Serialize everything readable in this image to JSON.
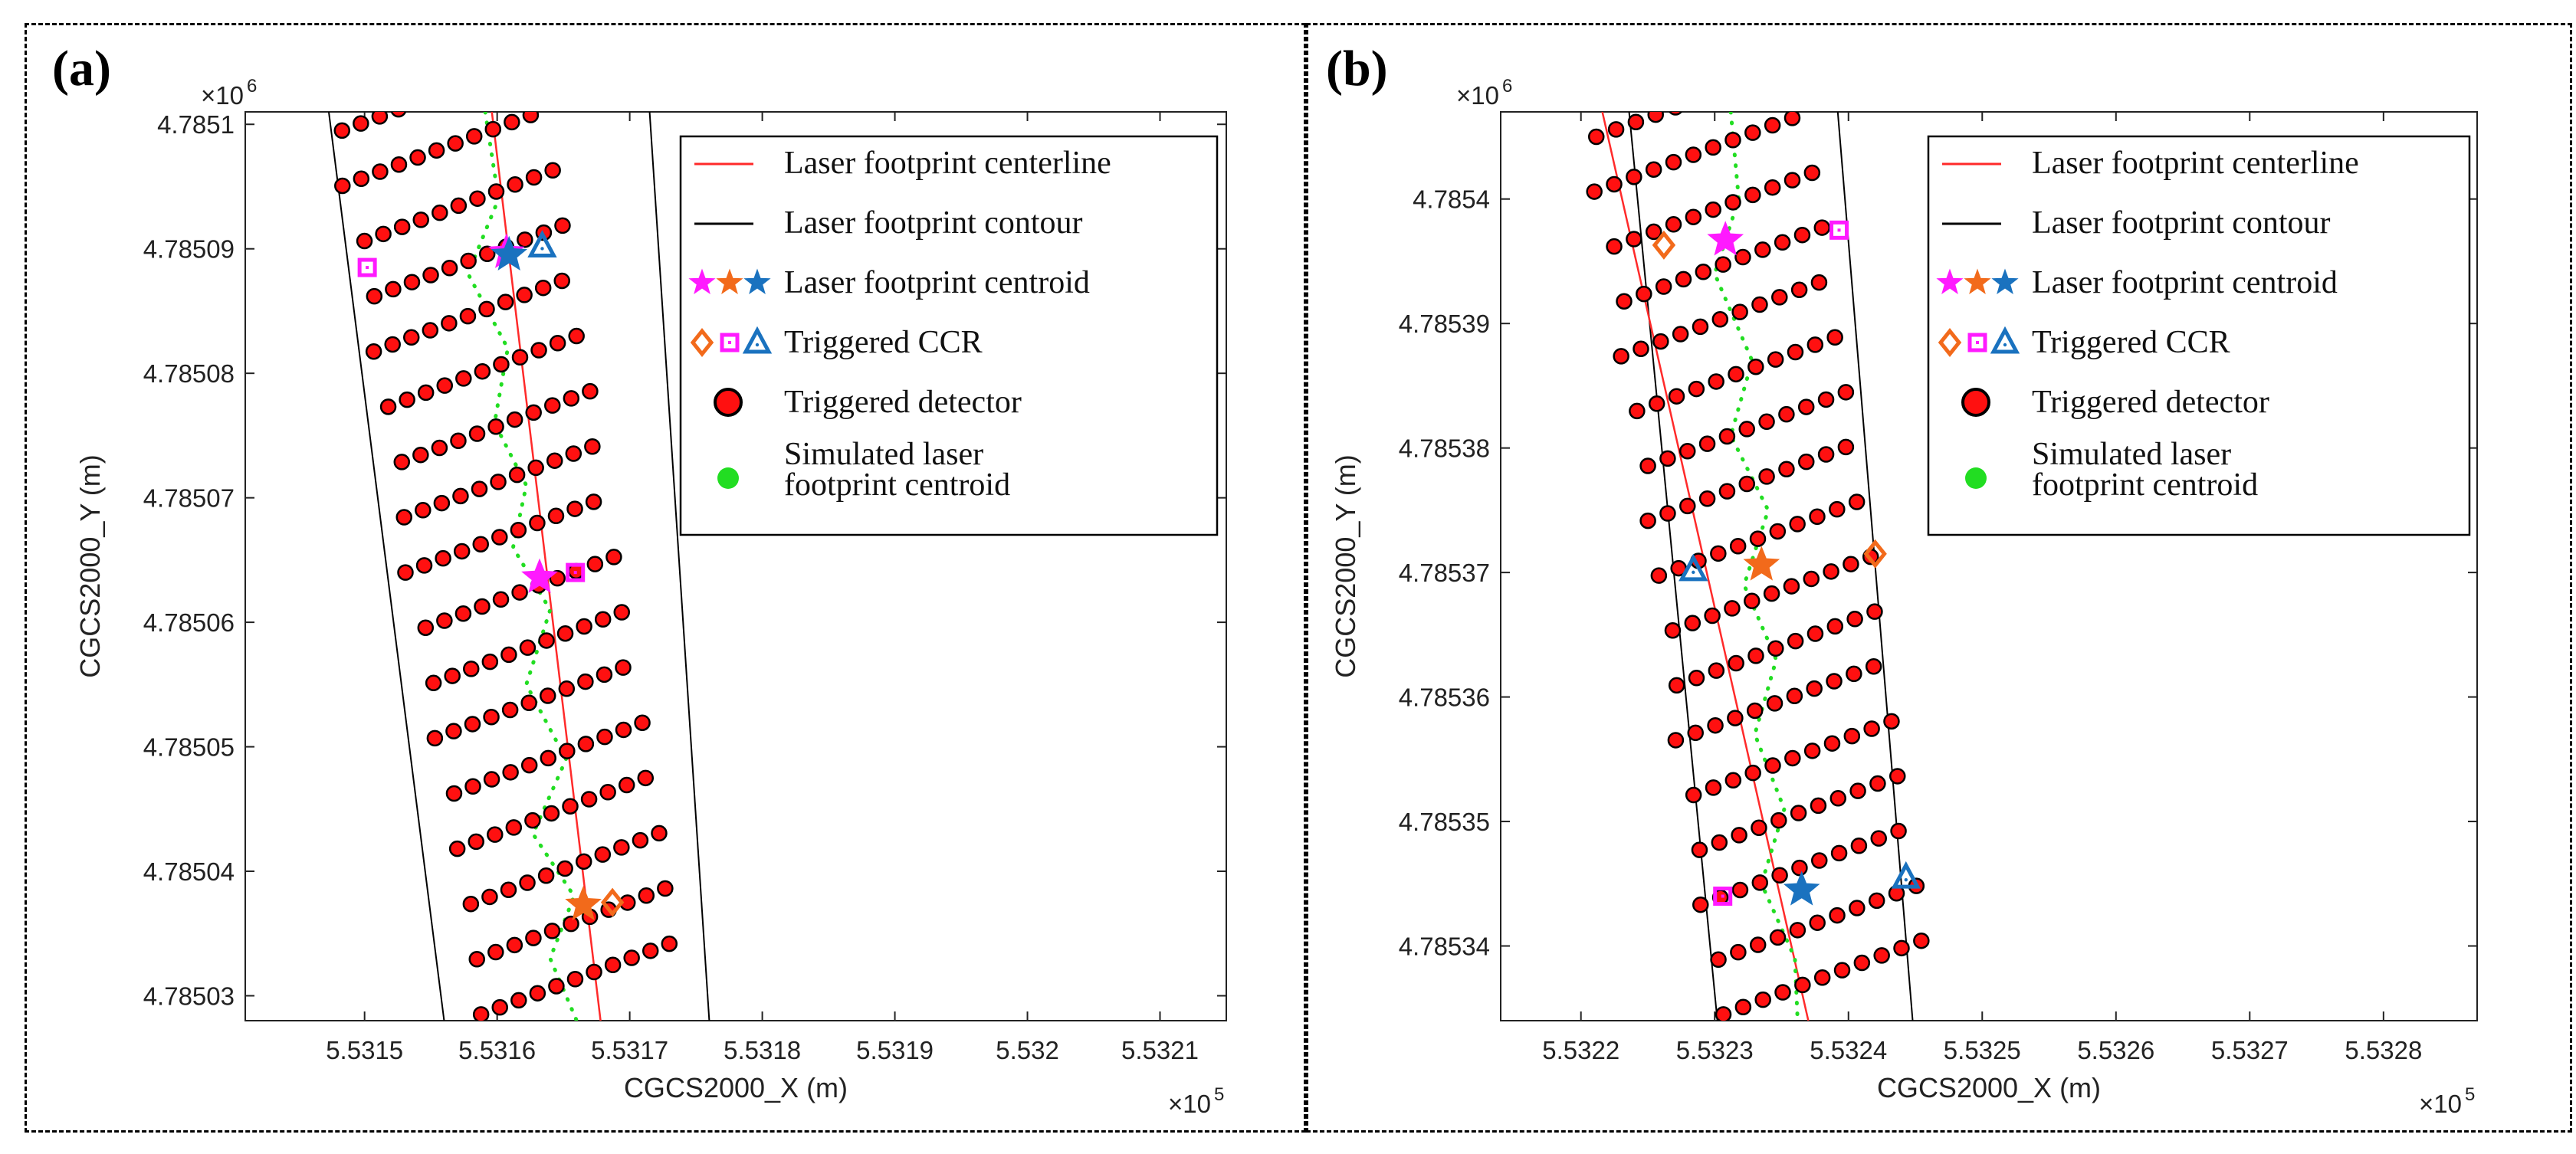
{
  "panel_labels": [
    "(a)",
    "(b)"
  ],
  "legend": {
    "centerline": "Laser footprint centerline",
    "contour": "Laser footprint contour",
    "centroid": "Laser footprint centroid",
    "ccr": "Triggered CCR",
    "detector": "Triggered detector",
    "simulated_line1": "Simulated laser",
    "simulated_line2": "footprint centroid"
  },
  "colors": {
    "centerline": "#ff2a2a",
    "contour": "#000000",
    "magenta": "#ff1aff",
    "orange": "#f26a1b",
    "blue": "#1a72bf",
    "detector_fill": "#ff1010",
    "detector_edge": "#000000",
    "simulated": "#22dd22",
    "grid": "#bbbbbb"
  },
  "chart_data": [
    {
      "id": "a",
      "type": "scatter",
      "xlabel": "CGCS2000_X (m)",
      "ylabel": "CGCS2000_Y (m)",
      "x_exponent": "×10",
      "x_exp_power": "5",
      "y_exponent": "×10",
      "y_exp_power": "6",
      "xlim": [
        5.53141,
        5.53215
      ],
      "ylim": [
        4.785028,
        4.785101
      ],
      "xticks": [
        5.5315,
        5.5316,
        5.5317,
        5.5318,
        5.5319,
        5.532,
        5.5321
      ],
      "xtick_labels": [
        "5.5315",
        "5.5316",
        "5.5317",
        "5.5318",
        "5.5319",
        "5.532",
        "5.5321"
      ],
      "yticks": [
        4.78503,
        4.78504,
        4.78505,
        4.78506,
        4.78507,
        4.78508,
        4.78509,
        4.7851
      ],
      "ytick_labels": [
        "4.78503",
        "4.78504",
        "4.78505",
        "4.78506",
        "4.78507",
        "4.78508",
        "4.78509",
        "4.7851"
      ],
      "rows": {
        "count": 17,
        "y_top": 4.7850995,
        "y_bottom": 4.7850285,
        "left_top_x": 5.531483,
        "left_bottom_x": 5.53159,
        "dots_per_row": 11,
        "spacing": 1.42e-05,
        "row_offsets": [
          0,
          -0.9,
          0.5,
          0.6,
          -0.4,
          0.2,
          0.7,
          0,
          -0.8,
          0.4,
          0.3,
          -0.5,
          0.6,
          0,
          0.5,
          0.2,
          -0.3
        ]
      },
      "centerline": [
        [
          5.531596,
          4.785101
        ],
        [
          5.531678,
          4.785028
        ]
      ],
      "contour_left": [
        [
          5.531473,
          4.785101
        ],
        [
          5.53156,
          4.785028
        ]
      ],
      "contour_right": [
        [
          5.531715,
          4.785101
        ],
        [
          5.53176,
          4.785028
        ]
      ],
      "simulated_centroid_path": [
        [
          5.531591,
          4.785101
        ],
        [
          5.531601,
          4.785094
        ],
        [
          5.531578,
          4.785088
        ],
        [
          5.531608,
          4.785082
        ],
        [
          5.531598,
          4.785076
        ],
        [
          5.531622,
          4.785071
        ],
        [
          5.531612,
          4.785066
        ],
        [
          5.53164,
          4.785061
        ],
        [
          5.531622,
          4.785055
        ],
        [
          5.531652,
          4.785049
        ],
        [
          5.531627,
          4.785043
        ],
        [
          5.531658,
          4.785038
        ],
        [
          5.53164,
          4.785033
        ],
        [
          5.53166,
          4.785028
        ]
      ],
      "centroids": [
        {
          "color": "magenta",
          "x": 5.531607,
          "y": 4.7850897
        },
        {
          "color": "blue",
          "x": 5.531609,
          "y": 4.7850895
        },
        {
          "color": "magenta",
          "x": 5.531632,
          "y": 4.7850636
        },
        {
          "color": "orange",
          "x": 5.531665,
          "y": 4.7850373
        }
      ],
      "ccrs": [
        {
          "shape": "square",
          "color": "magenta",
          "x": 5.531502,
          "y": 4.7850885
        },
        {
          "shape": "triangle",
          "color": "blue",
          "x": 5.531634,
          "y": 4.7850902
        },
        {
          "shape": "square",
          "color": "magenta",
          "x": 5.531659,
          "y": 4.785064
        },
        {
          "shape": "diamond",
          "color": "orange",
          "x": 5.531687,
          "y": 4.7850375
        }
      ]
    },
    {
      "id": "b",
      "type": "scatter",
      "xlabel": "CGCS2000_X (m)",
      "ylabel": "CGCS2000_Y (m)",
      "x_exponent": "×10",
      "x_exp_power": "5",
      "y_exponent": "×10",
      "y_exp_power": "6",
      "xlim": [
        5.53214,
        5.53287
      ],
      "ylim": [
        4.785334,
        4.785407
      ],
      "xticks": [
        5.5322,
        5.5323,
        5.5324,
        5.5325,
        5.5326,
        5.5327,
        5.5328
      ],
      "xtick_labels": [
        "5.5322",
        "5.5323",
        "5.5324",
        "5.5325",
        "5.5326",
        "5.5327",
        "5.5328"
      ],
      "yticks": [
        4.78534,
        4.78535,
        4.78536,
        4.78537,
        4.78538,
        4.78539,
        4.7854
      ],
      "ytick_labels": [
        "4.78534",
        "4.78535",
        "4.78536",
        "4.78537",
        "4.78538",
        "4.78539",
        "4.7854"
      ],
      "rows": {
        "count": 17,
        "y_top": 4.785405,
        "y_bottom": 4.7853345,
        "left_top_x": 5.53221,
        "left_bottom_x": 5.532305,
        "dots_per_row": 11,
        "spacing": 1.48e-05,
        "row_offsets": [
          0.2,
          -0.8,
          0.4,
          0.6,
          -0.5,
          0.3,
          0.6,
          -0.2,
          0.1,
          0.7,
          0.3,
          -0.6,
          0.4,
          0.2,
          -0.5,
          0.5,
          0.2
        ]
      },
      "centerline": [
        [
          5.532216,
          4.785407
        ],
        [
          5.53237,
          4.785334
        ]
      ],
      "contour_left": [
        [
          5.532236,
          4.785407
        ],
        [
          5.532302,
          4.785334
        ]
      ],
      "contour_right": [
        [
          5.532392,
          4.785407
        ],
        [
          5.532448,
          4.785334
        ]
      ],
      "simulated_centroid_path": [
        [
          5.532312,
          4.785407
        ],
        [
          5.532318,
          4.7854
        ],
        [
          5.5323,
          4.785394
        ],
        [
          5.532328,
          4.785387
        ],
        [
          5.532312,
          4.785381
        ],
        [
          5.53234,
          4.785375
        ],
        [
          5.532322,
          4.785369
        ],
        [
          5.532346,
          4.785363
        ],
        [
          5.53233,
          4.785357
        ],
        [
          5.532352,
          4.785351
        ],
        [
          5.532335,
          4.785345
        ],
        [
          5.53236,
          4.785339
        ],
        [
          5.532362,
          4.785334
        ]
      ],
      "centroids": [
        {
          "color": "magenta",
          "x": 5.532308,
          "y": 4.7853967
        },
        {
          "color": "orange",
          "x": 5.532335,
          "y": 4.7853706
        },
        {
          "color": "blue",
          "x": 5.532365,
          "y": 4.7853445
        }
      ],
      "ccrs": [
        {
          "shape": "diamond",
          "color": "orange",
          "x": 5.532262,
          "y": 4.7853963
        },
        {
          "shape": "square",
          "color": "magenta",
          "x": 5.532393,
          "y": 4.7853975
        },
        {
          "shape": "triangle",
          "color": "blue",
          "x": 5.532284,
          "y": 4.7853702
        },
        {
          "shape": "diamond",
          "color": "orange",
          "x": 5.53242,
          "y": 4.7853715
        },
        {
          "shape": "square",
          "color": "magenta",
          "x": 5.532306,
          "y": 4.785344
        },
        {
          "shape": "triangle",
          "color": "blue",
          "x": 5.532443,
          "y": 4.7853455
        }
      ]
    }
  ]
}
